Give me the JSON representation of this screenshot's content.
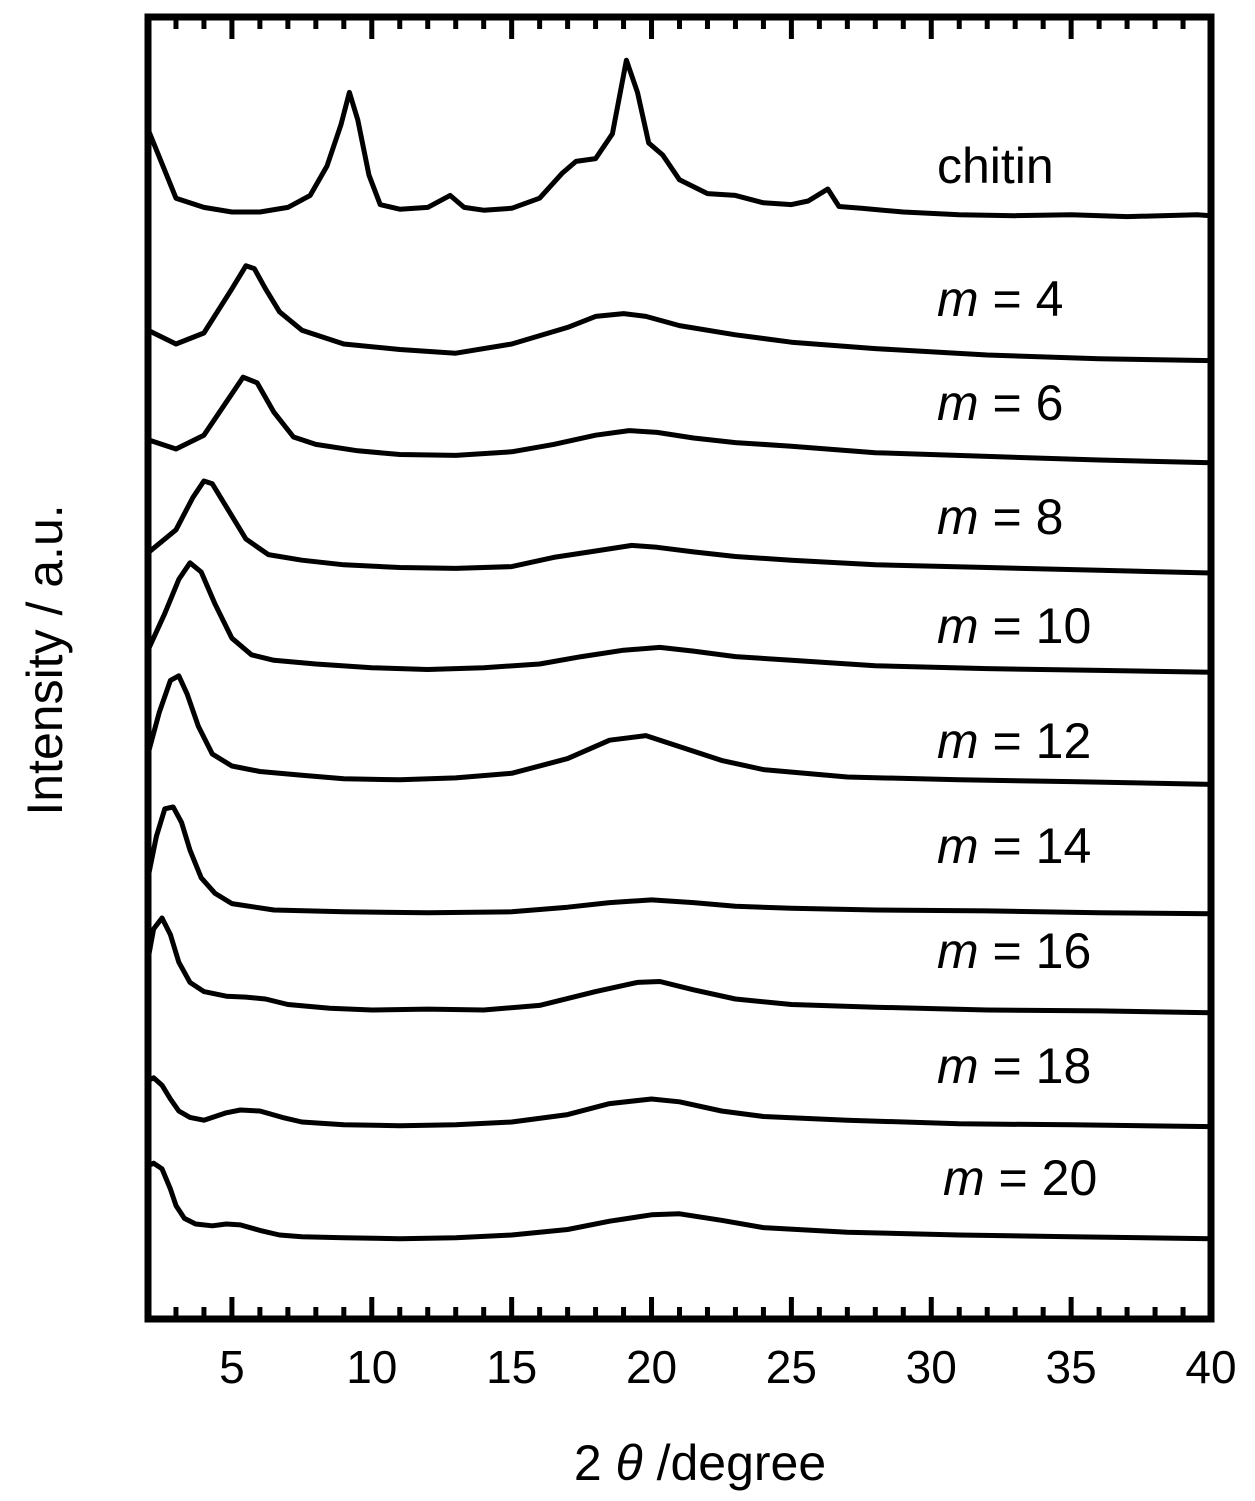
{
  "chart_data": {
    "type": "line",
    "title": "",
    "xlabel": {
      "prefix": "2",
      "symbol": "θ",
      "suffix": " /degree"
    },
    "ylabel": "Intensity / a.u.",
    "xlim": [
      2,
      40
    ],
    "xticks": [
      5,
      10,
      15,
      20,
      25,
      30,
      35,
      40
    ],
    "y_units": "arbitrary (stacked, offset traces)",
    "grid": false,
    "series": [
      {
        "name": "chitin",
        "label_var": "",
        "label_rest": "chitin",
        "x": [
          2,
          3,
          4,
          5,
          6,
          7,
          7.8,
          8.4,
          8.9,
          9.2,
          9.5,
          9.9,
          10.3,
          11,
          12,
          12.8,
          13.3,
          14,
          15,
          16,
          16.8,
          17.3,
          18,
          18.6,
          19.1,
          19.5,
          19.9,
          20.4,
          21,
          22,
          23,
          24,
          25,
          25.6,
          26.3,
          26.7,
          27.5,
          29,
          31,
          33,
          35,
          37,
          39.5,
          40
        ],
        "y": [
          0.9,
          0.15,
          0.05,
          0.0,
          0.0,
          0.05,
          0.18,
          0.5,
          0.95,
          1.3,
          1.0,
          0.4,
          0.08,
          0.03,
          0.05,
          0.18,
          0.05,
          0.02,
          0.04,
          0.15,
          0.42,
          0.55,
          0.58,
          0.85,
          1.65,
          1.3,
          0.75,
          0.62,
          0.35,
          0.2,
          0.18,
          0.1,
          0.08,
          0.12,
          0.25,
          0.06,
          0.04,
          0.0,
          -0.03,
          -0.04,
          -0.03,
          -0.05,
          -0.03,
          -0.04
        ]
      },
      {
        "name": "m = 4",
        "label_var": "m",
        "label_rest": " = 4",
        "x": [
          2,
          3,
          4,
          5,
          5.5,
          5.8,
          6.2,
          6.7,
          7.5,
          9,
          11,
          13,
          15,
          17,
          18,
          19,
          19.8,
          21,
          23,
          25,
          28,
          32,
          36,
          40
        ],
        "y": [
          0.15,
          0.0,
          0.12,
          0.6,
          0.85,
          0.82,
          0.6,
          0.35,
          0.15,
          0.0,
          -0.06,
          -0.1,
          0.0,
          0.18,
          0.3,
          0.33,
          0.3,
          0.2,
          0.1,
          0.02,
          -0.05,
          -0.12,
          -0.16,
          -0.18
        ]
      },
      {
        "name": "m = 6",
        "label_var": "m",
        "label_rest": " = 6",
        "x": [
          2,
          3,
          4,
          5,
          5.4,
          5.9,
          6.5,
          7.2,
          8,
          9.5,
          11,
          13,
          15,
          16.5,
          18,
          19.2,
          20.2,
          21.5,
          23,
          25,
          28,
          32,
          36,
          40
        ],
        "y": [
          0.1,
          0.0,
          0.15,
          0.6,
          0.78,
          0.72,
          0.4,
          0.13,
          0.05,
          -0.02,
          -0.06,
          -0.07,
          -0.03,
          0.05,
          0.15,
          0.2,
          0.18,
          0.12,
          0.07,
          0.03,
          -0.04,
          -0.08,
          -0.12,
          -0.15
        ]
      },
      {
        "name": "m = 8",
        "label_var": "m",
        "label_rest": " = 8",
        "x": [
          2,
          3,
          3.6,
          4,
          4.3,
          4.8,
          5.5,
          6.3,
          7.5,
          9,
          11,
          13,
          15,
          16.5,
          18,
          19.3,
          20.2,
          21.5,
          23,
          25,
          28,
          32,
          36,
          40
        ],
        "y": [
          0.1,
          0.35,
          0.7,
          0.88,
          0.85,
          0.6,
          0.25,
          0.08,
          0.02,
          -0.03,
          -0.06,
          -0.07,
          -0.05,
          0.05,
          0.12,
          0.18,
          0.16,
          0.11,
          0.06,
          0.02,
          -0.03,
          -0.06,
          -0.09,
          -0.12
        ]
      },
      {
        "name": "m = 10",
        "label_var": "m",
        "label_rest": " = 10",
        "x": [
          2,
          2.6,
          3.1,
          3.5,
          3.9,
          4.4,
          5,
          5.7,
          6.5,
          8,
          10,
          12,
          14,
          16,
          17.5,
          19,
          20.3,
          21.5,
          23,
          25,
          28,
          32,
          36,
          40
        ],
        "y": [
          0.15,
          0.55,
          0.92,
          1.1,
          1.0,
          0.65,
          0.28,
          0.1,
          0.04,
          0.0,
          -0.04,
          -0.06,
          -0.04,
          0.0,
          0.08,
          0.15,
          0.18,
          0.14,
          0.08,
          0.04,
          -0.02,
          -0.05,
          -0.07,
          -0.09
        ]
      },
      {
        "name": "m = 12",
        "label_var": "m",
        "label_rest": " = 12",
        "x": [
          2,
          2.4,
          2.8,
          3.1,
          3.4,
          3.8,
          4.3,
          5,
          6,
          7.5,
          9,
          11,
          13,
          15,
          17,
          18.5,
          19.8,
          21,
          22.5,
          24,
          27,
          31,
          35,
          40
        ],
        "y": [
          0.25,
          0.7,
          1.05,
          1.1,
          0.9,
          0.55,
          0.25,
          0.12,
          0.06,
          0.02,
          -0.02,
          -0.03,
          -0.01,
          0.04,
          0.2,
          0.4,
          0.45,
          0.33,
          0.18,
          0.08,
          0.0,
          -0.03,
          -0.05,
          -0.08
        ]
      },
      {
        "name": "m = 14",
        "label_var": "m",
        "label_rest": " = 14",
        "x": [
          2,
          2.3,
          2.6,
          2.9,
          3.2,
          3.5,
          3.9,
          4.4,
          5,
          6.5,
          9,
          12,
          15,
          17,
          18.5,
          20,
          21.5,
          23,
          25,
          28,
          32,
          36,
          40
        ],
        "y": [
          0.35,
          0.8,
          1.1,
          1.12,
          0.95,
          0.65,
          0.35,
          0.18,
          0.07,
          0.0,
          -0.02,
          -0.03,
          -0.02,
          0.03,
          0.08,
          0.11,
          0.08,
          0.04,
          0.02,
          0.0,
          -0.01,
          -0.03,
          -0.04
        ]
      },
      {
        "name": "m = 16",
        "label_var": "m",
        "label_rest": " = 16",
        "x": [
          2,
          2.2,
          2.5,
          2.8,
          3.1,
          3.5,
          4,
          4.8,
          5.5,
          6.2,
          7,
          8.5,
          10,
          12,
          14,
          16,
          18,
          19.5,
          20.3,
          21.5,
          23,
          25,
          28,
          32,
          36,
          40
        ],
        "y": [
          0.55,
          0.88,
          1.0,
          0.82,
          0.52,
          0.3,
          0.2,
          0.15,
          0.14,
          0.12,
          0.06,
          0.02,
          0.0,
          0.01,
          0.0,
          0.05,
          0.2,
          0.3,
          0.31,
          0.22,
          0.12,
          0.06,
          0.03,
          0.0,
          -0.01,
          -0.03
        ]
      },
      {
        "name": "m = 18",
        "label_var": "m",
        "label_rest": " = 18",
        "x": [
          2,
          2.2,
          2.5,
          2.8,
          3.1,
          3.5,
          4,
          4.8,
          5.3,
          6,
          6.8,
          7.5,
          9,
          11,
          13,
          15,
          17,
          18.5,
          20,
          21,
          22.5,
          24,
          27,
          31,
          35,
          40
        ],
        "y": [
          0.45,
          0.48,
          0.4,
          0.25,
          0.12,
          0.05,
          0.02,
          0.1,
          0.13,
          0.12,
          0.05,
          0.0,
          -0.03,
          -0.04,
          -0.03,
          0.0,
          0.08,
          0.2,
          0.25,
          0.22,
          0.12,
          0.06,
          0.02,
          -0.02,
          -0.03,
          -0.05
        ]
      },
      {
        "name": "m = 20",
        "label_var": "m",
        "label_rest": " = 20",
        "x": [
          2,
          2.2,
          2.5,
          2.8,
          3,
          3.3,
          3.7,
          4.3,
          4.8,
          5.3,
          6,
          6.7,
          7.5,
          9,
          11,
          13,
          15,
          17,
          18.5,
          20,
          21,
          22.5,
          24,
          27,
          31,
          35,
          40
        ],
        "y": [
          0.75,
          0.78,
          0.72,
          0.5,
          0.32,
          0.18,
          0.12,
          0.1,
          0.12,
          0.11,
          0.05,
          0.0,
          -0.02,
          -0.03,
          -0.04,
          -0.03,
          0.0,
          0.06,
          0.15,
          0.22,
          0.23,
          0.16,
          0.08,
          0.03,
          0.0,
          -0.02,
          -0.04
        ]
      }
    ]
  }
}
